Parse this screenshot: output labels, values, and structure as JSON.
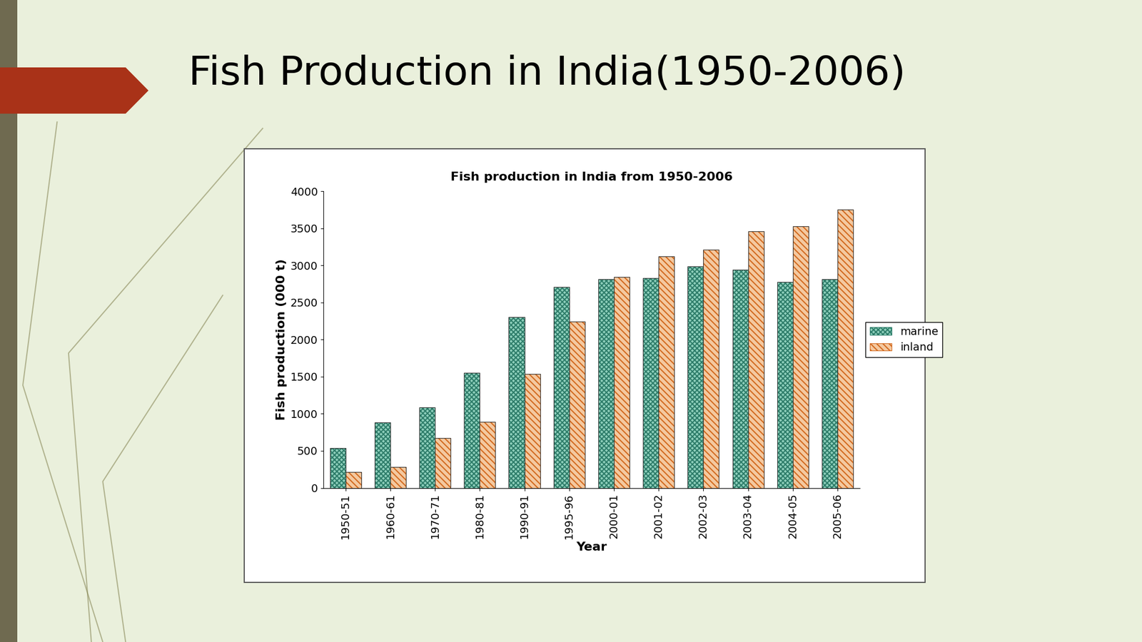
{
  "slide": {
    "title": "Fish Production in India(1950-2006)"
  },
  "chart_data": {
    "type": "bar",
    "title": "Fish production in India from 1950-2006",
    "x_label": "Year",
    "y_label": "Fish production (000 t)",
    "categories": [
      "1950-51",
      "1960-61",
      "1970-71",
      "1980-81",
      "1990-91",
      "1995-96",
      "2000-01",
      "2001-02",
      "2002-03",
      "2003-04",
      "2004-05",
      "2005-06"
    ],
    "series": [
      {
        "name": "marine",
        "color": "#8fd0bc",
        "values": [
          534,
          880,
          1086,
          1555,
          2300,
          2707,
          2811,
          2830,
          2990,
          2941,
          2779,
          2816
        ]
      },
      {
        "name": "inland",
        "color": "#f4c9a0",
        "values": [
          218,
          280,
          670,
          887,
          1536,
          2242,
          2845,
          3126,
          3210,
          3458,
          3526,
          3756
        ]
      }
    ],
    "ylim": [
      0,
      4000
    ],
    "yticks": [
      0,
      500,
      1000,
      1500,
      2000,
      2500,
      3000,
      3500,
      4000
    ],
    "grid": false,
    "legend": "center left"
  }
}
